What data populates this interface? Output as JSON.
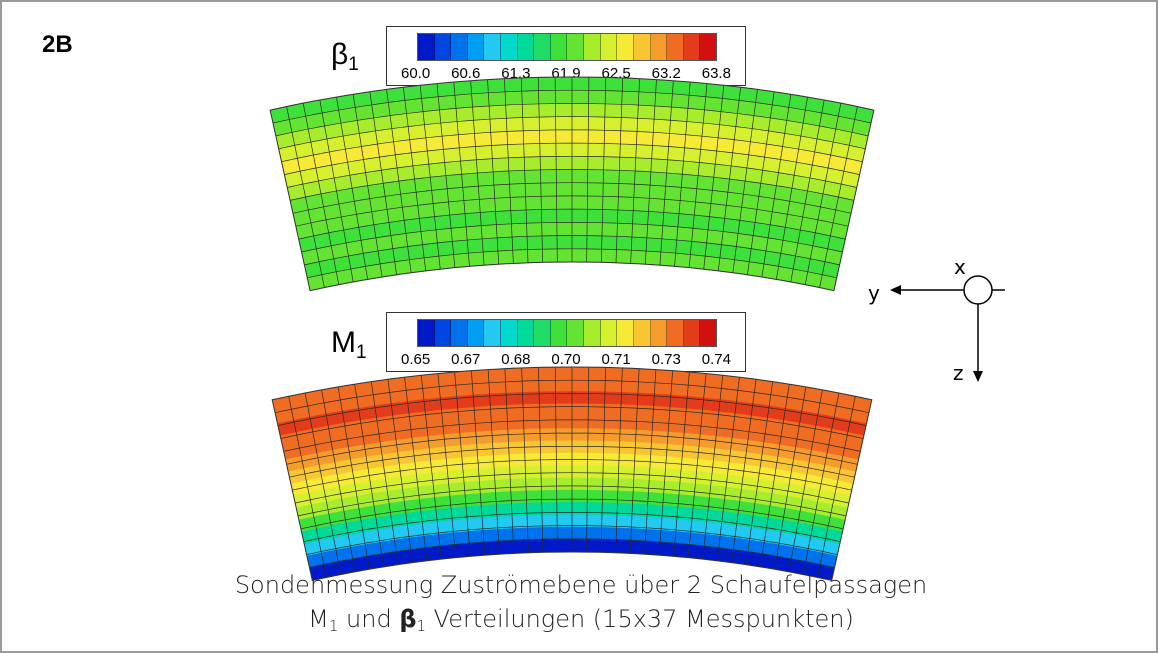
{
  "panel_label": "2B",
  "beta_plot": {
    "symbol": "β",
    "subscript": "1",
    "ticks": [
      "60.0",
      "60.6",
      "61.3",
      "61.9",
      "62.5",
      "63.2",
      "63.8"
    ]
  },
  "mach_plot": {
    "symbol": "M",
    "subscript": "1",
    "ticks": [
      "0.65",
      "0.67",
      "0.68",
      "0.70",
      "0.71",
      "0.73",
      "0.74"
    ]
  },
  "colormap": [
    "#0019c9",
    "#0046e0",
    "#0072ee",
    "#009ef3",
    "#22c9f0",
    "#00d9cc",
    "#00d99a",
    "#1edc66",
    "#3ee03a",
    "#64e432",
    "#a8ec2e",
    "#d6f030",
    "#f6ea36",
    "#f8c632",
    "#f69c2c",
    "#ef6c22",
    "#e33c1a",
    "#d21010"
  ],
  "axes": {
    "x": "x",
    "y": "y",
    "z": "z"
  },
  "caption": {
    "line1": "Sondenmessung Zuströmebene über 2 Schaufelpassagen",
    "line2_m": "M",
    "line2_sub1": "1",
    "line2_und": " und ",
    "line2_beta": "β",
    "line2_sub2": "1",
    "line2_rest": " Verteilungen (15x37 Messpunkten)"
  }
}
